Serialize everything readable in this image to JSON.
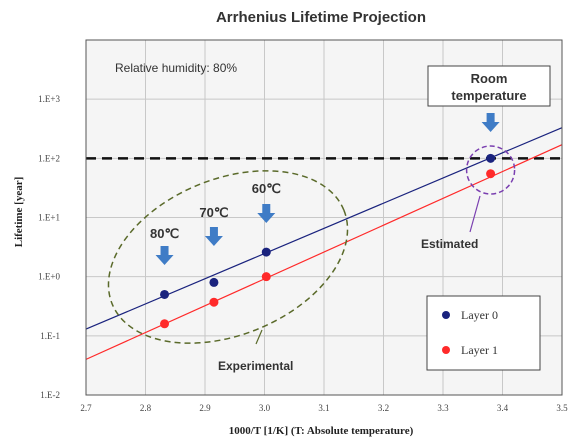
{
  "chart_data": {
    "type": "scatter",
    "title": "Arrhenius Lifetime Projection",
    "xlabel": "1000/T [1/K]  (T: Absolute temperature)",
    "ylabel": "Lifetime [year]",
    "xlim": [
      2.7,
      3.5
    ],
    "ylim": [
      -2,
      4
    ],
    "y_scale": "log",
    "x_ticks": [
      2.7,
      2.8,
      2.9,
      3.0,
      3.1,
      3.2,
      3.3,
      3.4,
      3.5
    ],
    "x_tick_labels": [
      "2.7",
      "2.8",
      "2.9",
      "3.0",
      "3.1",
      "3.2",
      "3.3",
      "3.4",
      "3.5"
    ],
    "y_ticks": [
      0.01,
      0.1,
      1,
      10,
      100,
      1000
    ],
    "y_tick_labels": [
      "1.E-2",
      "1.E-1",
      "1.E+0",
      "1.E+1",
      "1.E+2",
      "1.E+3"
    ],
    "grid": true,
    "legend_position": "bottom-right",
    "series": [
      {
        "name": "Layer 0",
        "color": "#1a237e",
        "points": [
          {
            "x": 2.832,
            "y": 0.5
          },
          {
            "x": 2.915,
            "y": 0.8
          },
          {
            "x": 3.003,
            "y": 2.6
          },
          {
            "x": 3.38,
            "y": 100
          }
        ],
        "fit_line": [
          {
            "x": 2.7,
            "y": 0.13
          },
          {
            "x": 3.5,
            "y": 330
          }
        ]
      },
      {
        "name": "Layer 1",
        "color": "#ff2a2a",
        "points": [
          {
            "x": 2.832,
            "y": 0.16
          },
          {
            "x": 2.915,
            "y": 0.37
          },
          {
            "x": 3.003,
            "y": 1.0
          },
          {
            "x": 3.38,
            "y": 55
          }
        ],
        "fit_line": [
          {
            "x": 2.7,
            "y": 0.04
          },
          {
            "x": 3.5,
            "y": 170
          }
        ]
      }
    ],
    "reference_line": {
      "y": 100,
      "style": "dashed",
      "color": "#111111"
    },
    "annotations": {
      "humidity": "Relative humidity: 80%",
      "room_temperature": "Room\ntemperature",
      "temperatures": [
        {
          "label": "80℃",
          "x": 2.832
        },
        {
          "label": "70℃",
          "x": 2.915
        },
        {
          "label": "60℃",
          "x": 3.003
        }
      ],
      "experimental": "Experimental",
      "estimated": "Estimated"
    },
    "colors": {
      "arrow": "#3f7cc6",
      "experimental": "#5a6a2a",
      "estimated": "#7a3fb0",
      "plot_background": "#f5f5f5"
    }
  }
}
